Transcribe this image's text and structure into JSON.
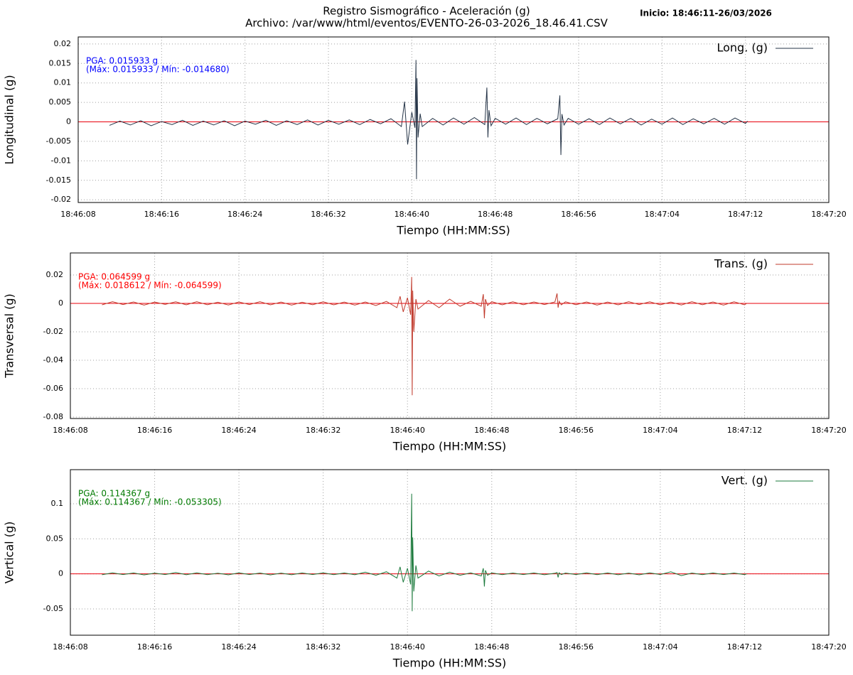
{
  "header": {
    "title": "Registro Sismográfico - Aceleración (g)",
    "subtitle": "Archivo: /var/www/html/eventos/EVENTO-26-03-2026_18.46.41.CSV",
    "start": "Inicio: 18:46:11-26/03/2026"
  },
  "chart_data": [
    {
      "type": "line",
      "xlabel": "Tiempo (HH:MM:SS)",
      "ylabel": "Longitudinal (g)",
      "annotations": [
        "PGA: 0.015933 g",
        "(Máx: 0.015933 / Mín: -0.014680)"
      ],
      "annotation_color": "#0000ff",
      "legend": "upper right",
      "grid": true,
      "zero_line_color": "#e8000b",
      "xlim": [
        67568,
        67640
      ],
      "xticks": [
        {
          "value": 67568,
          "label": "18:46:08"
        },
        {
          "value": 67576,
          "label": "18:46:16"
        },
        {
          "value": 67584,
          "label": "18:46:24"
        },
        {
          "value": 67592,
          "label": "18:46:32"
        },
        {
          "value": 67600,
          "label": "18:46:40"
        },
        {
          "value": 67608,
          "label": "18:46:48"
        },
        {
          "value": 67616,
          "label": "18:46:56"
        },
        {
          "value": 67624,
          "label": "18:47:04"
        },
        {
          "value": 67632,
          "label": "18:47:12"
        },
        {
          "value": 67640,
          "label": "18:47:20"
        }
      ],
      "ylim": [
        -0.0207,
        0.0218
      ],
      "yticks": [
        0.02,
        0.015,
        0.01,
        0.005,
        0,
        -0.005,
        -0.01,
        -0.015,
        -0.02
      ],
      "x": [
        67571,
        67572,
        67573,
        67574,
        67575,
        67576,
        67577,
        67578,
        67579,
        67580,
        67581,
        67582,
        67583,
        67584,
        67585,
        67586,
        67587,
        67588,
        67589,
        67590,
        67591,
        67592,
        67593,
        67594,
        67595,
        67596,
        67597,
        67598,
        67599,
        67599.3,
        67599.6,
        67600,
        67600.3,
        67600.4,
        67600.45,
        67600.5,
        67600.6,
        67600.8,
        67601,
        67602,
        67603,
        67604,
        67605,
        67606,
        67607,
        67607.2,
        67607.3,
        67607.4,
        67607.6,
        67608,
        67609,
        67610,
        67611,
        67612,
        67613,
        67614,
        67614.2,
        67614.3,
        67614.4,
        67614.6,
        67615,
        67616,
        67617,
        67618,
        67619,
        67620,
        67621,
        67622,
        67623,
        67624,
        67625,
        67626,
        67627,
        67628,
        67629,
        67630,
        67631,
        67632,
        67632.2
      ],
      "series": [
        {
          "name": "Long. (g)",
          "color": "#253447",
          "values": [
            -0.0009,
            0.0002,
            -0.0008,
            0.0003,
            -0.001,
            0.0001,
            -0.0007,
            0.0004,
            -0.0009,
            0.0002,
            -0.0008,
            0.0003,
            -0.001,
            0.0002,
            -0.0006,
            0.0004,
            -0.0009,
            0.0003,
            -0.0007,
            0.0005,
            -0.0008,
            0.0004,
            -0.0006,
            0.0005,
            -0.0007,
            0.0006,
            -0.0005,
            0.0008,
            -0.0012,
            0.0052,
            -0.0058,
            0.0025,
            -0.0015,
            0.0159,
            -0.0147,
            0.0112,
            -0.004,
            0.0021,
            -0.0012,
            0.0009,
            -0.0008,
            0.001,
            -0.0006,
            0.0011,
            -0.0007,
            0.0088,
            -0.004,
            0.003,
            -0.001,
            0.0009,
            -0.0006,
            0.001,
            -0.0007,
            0.0009,
            -0.0005,
            0.0008,
            0.0068,
            -0.0085,
            0.002,
            -0.0008,
            0.0009,
            -0.0006,
            0.0008,
            -0.0007,
            0.001,
            -0.0005,
            0.0009,
            -0.0008,
            0.0007,
            -0.0006,
            0.001,
            -0.0007,
            0.0008,
            -0.0005,
            0.0009,
            -0.0006,
            0.001,
            -0.0004,
            0.0002
          ]
        }
      ]
    },
    {
      "type": "line",
      "xlabel": "Tiempo (HH:MM:SS)",
      "ylabel": "Transversal (g)",
      "annotations": [
        "PGA: 0.064599 g",
        "(Máx: 0.018612 / Mín: -0.064599)"
      ],
      "annotation_color": "#ff0000",
      "legend": "upper right",
      "grid": true,
      "zero_line_color": "#e8000b",
      "xlim": [
        67568,
        67640
      ],
      "xticks": [
        {
          "value": 67568,
          "label": "18:46:08"
        },
        {
          "value": 67576,
          "label": "18:46:16"
        },
        {
          "value": 67584,
          "label": "18:46:24"
        },
        {
          "value": 67592,
          "label": "18:46:32"
        },
        {
          "value": 67600,
          "label": "18:46:40"
        },
        {
          "value": 67608,
          "label": "18:46:48"
        },
        {
          "value": 67616,
          "label": "18:46:56"
        },
        {
          "value": 67624,
          "label": "18:47:04"
        },
        {
          "value": 67632,
          "label": "18:47:12"
        },
        {
          "value": 67640,
          "label": "18:47:20"
        }
      ],
      "ylim": [
        -0.081,
        0.0355
      ],
      "yticks": [
        0.02,
        0,
        -0.02,
        -0.04,
        -0.06,
        -0.08
      ],
      "x": [
        67571,
        67572,
        67573,
        67574,
        67575,
        67576,
        67577,
        67578,
        67579,
        67580,
        67581,
        67582,
        67583,
        67584,
        67585,
        67586,
        67587,
        67588,
        67589,
        67590,
        67591,
        67592,
        67593,
        67594,
        67595,
        67596,
        67597,
        67598,
        67599,
        67599.3,
        67599.6,
        67600,
        67600.3,
        67600.4,
        67600.45,
        67600.5,
        67600.6,
        67600.8,
        67601,
        67602,
        67603,
        67604,
        67605,
        67606,
        67607,
        67607.2,
        67607.3,
        67607.4,
        67607.6,
        67608,
        67609,
        67610,
        67611,
        67612,
        67613,
        67614,
        67614.2,
        67614.3,
        67614.4,
        67614.6,
        67615,
        67616,
        67617,
        67618,
        67619,
        67620,
        67621,
        67622,
        67623,
        67624,
        67625,
        67626,
        67627,
        67628,
        67629,
        67630,
        67631,
        67632,
        67632.2
      ],
      "series": [
        {
          "name": "Trans. (g)",
          "color": "#c0392b",
          "values": [
            -0.001,
            0.0012,
            -0.0008,
            0.001,
            -0.0012,
            0.0009,
            -0.0007,
            0.0011,
            -0.001,
            0.0012,
            -0.0009,
            0.0008,
            -0.0011,
            0.001,
            -0.0008,
            0.0012,
            -0.001,
            0.0009,
            -0.0012,
            0.0008,
            -0.0009,
            0.0011,
            -0.001,
            0.0009,
            -0.0012,
            0.001,
            -0.0015,
            0.0014,
            -0.003,
            0.005,
            -0.006,
            0.004,
            -0.008,
            0.0186,
            -0.0646,
            0.009,
            -0.02,
            0.003,
            -0.004,
            0.002,
            -0.003,
            0.003,
            -0.002,
            0.0015,
            -0.002,
            0.0065,
            -0.0105,
            0.003,
            -0.0015,
            0.0012,
            -0.001,
            0.0011,
            -0.0009,
            0.001,
            -0.0008,
            0.001,
            0.007,
            -0.003,
            0.0015,
            -0.001,
            0.0011,
            -0.0009,
            0.001,
            -0.0012,
            0.0009,
            -0.001,
            0.0012,
            -0.0008,
            0.0011,
            -0.001,
            0.0009,
            -0.0011,
            0.0012,
            -0.0009,
            0.001,
            -0.0012,
            0.0011,
            -0.001,
            0
          ]
        }
      ]
    },
    {
      "type": "line",
      "xlabel": "Tiempo (HH:MM:SS)",
      "ylabel": "Vertical (g)",
      "annotations": [
        "PGA: 0.114367 g",
        "(Máx: 0.114367 / Mín: -0.053305)"
      ],
      "annotation_color": "#007a00",
      "legend": "upper right",
      "grid": true,
      "zero_line_color": "#e8000b",
      "xlim": [
        67568,
        67640
      ],
      "xticks": [
        {
          "value": 67568,
          "label": "18:46:08"
        },
        {
          "value": 67576,
          "label": "18:46:16"
        },
        {
          "value": 67584,
          "label": "18:46:24"
        },
        {
          "value": 67592,
          "label": "18:46:32"
        },
        {
          "value": 67600,
          "label": "18:46:40"
        },
        {
          "value": 67608,
          "label": "18:46:48"
        },
        {
          "value": 67616,
          "label": "18:46:56"
        },
        {
          "value": 67624,
          "label": "18:47:04"
        },
        {
          "value": 67632,
          "label": "18:47:12"
        },
        {
          "value": 67640,
          "label": "18:47:20"
        }
      ],
      "ylim": [
        -0.0875,
        0.1487
      ],
      "yticks": [
        0.1,
        0.05,
        0,
        -0.05
      ],
      "x": [
        67571,
        67572,
        67573,
        67574,
        67575,
        67576,
        67577,
        67578,
        67579,
        67580,
        67581,
        67582,
        67583,
        67584,
        67585,
        67586,
        67587,
        67588,
        67589,
        67590,
        67591,
        67592,
        67593,
        67594,
        67595,
        67596,
        67597,
        67598,
        67599,
        67599.3,
        67599.6,
        67600,
        67600.3,
        67600.4,
        67600.45,
        67600.5,
        67600.6,
        67600.8,
        67601,
        67602,
        67603,
        67604,
        67605,
        67606,
        67607,
        67607.2,
        67607.3,
        67607.4,
        67607.6,
        67608,
        67609,
        67610,
        67611,
        67612,
        67613,
        67614,
        67614.2,
        67614.3,
        67614.4,
        67614.6,
        67615,
        67616,
        67617,
        67618,
        67619,
        67620,
        67621,
        67622,
        67623,
        67624,
        67625,
        67626,
        67627,
        67628,
        67629,
        67630,
        67631,
        67632,
        67632.2
      ],
      "series": [
        {
          "name": "Vert. (g)",
          "color": "#1e7b3e",
          "values": [
            -0.0012,
            0.0015,
            -0.001,
            0.0013,
            -0.0014,
            0.0011,
            -0.0009,
            0.002,
            -0.0012,
            0.0014,
            -0.0011,
            0.001,
            -0.0013,
            0.0015,
            -0.001,
            0.0012,
            -0.0014,
            0.0011,
            -0.0012,
            0.0013,
            -0.001,
            0.0014,
            -0.0011,
            0.0013,
            -0.0012,
            0.0025,
            -0.002,
            0.003,
            -0.006,
            0.01,
            -0.012,
            0.008,
            -0.015,
            0.1144,
            -0.0533,
            0.052,
            -0.025,
            0.012,
            -0.006,
            0.004,
            -0.003,
            0.0025,
            -0.002,
            0.0015,
            -0.003,
            0.008,
            -0.018,
            0.005,
            -0.002,
            0.0014,
            -0.0011,
            0.0012,
            -0.001,
            0.0013,
            -0.0012,
            0.001,
            0.002,
            -0.005,
            0.0015,
            -0.001,
            0.0012,
            -0.001,
            0.0014,
            -0.0011,
            0.0013,
            -0.0012,
            0.0011,
            -0.0013,
            0.0015,
            -0.001,
            0.003,
            -0.0025,
            0.0012,
            -0.0011,
            0.0013,
            -0.001,
            0.0012,
            -0.0011,
            0
          ]
        }
      ]
    }
  ]
}
